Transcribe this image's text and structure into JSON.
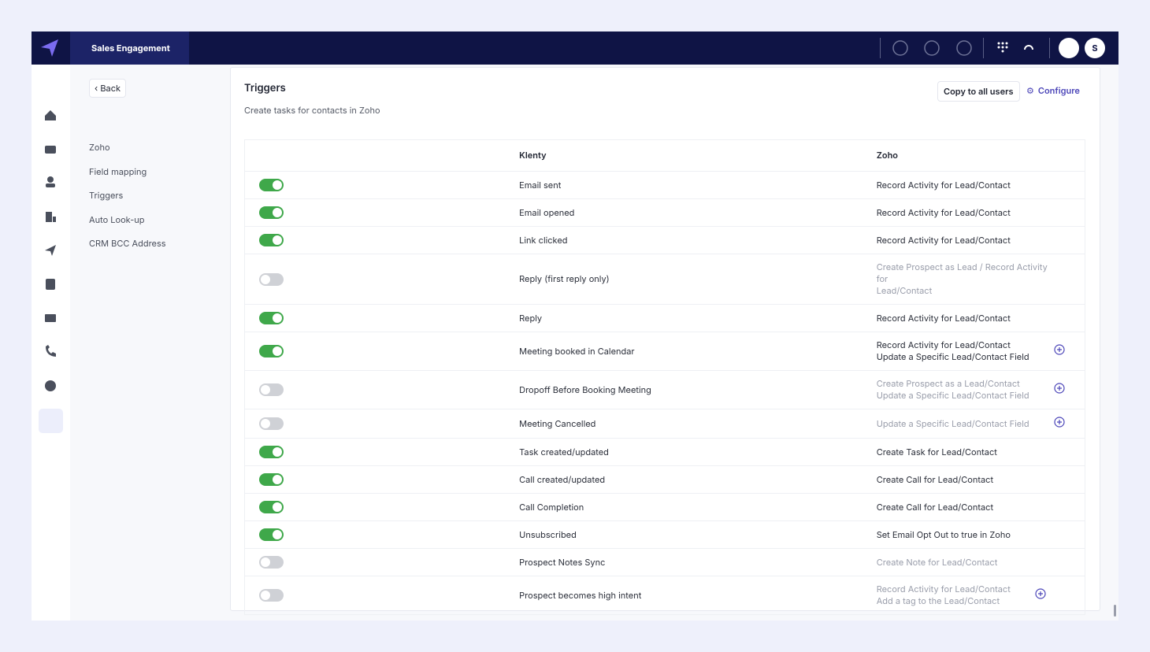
{
  "header": {
    "title": "Sales Engagement",
    "avatar": "S"
  },
  "nav": {
    "back": "Back",
    "items": [
      "Zoho",
      "Field mapping",
      "Triggers",
      "Auto Look-up",
      "CRM BCC Address"
    ]
  },
  "panel": {
    "title": "Triggers",
    "subtitle": "Create tasks for contacts in Zoho",
    "copy_button": "Copy to all users",
    "configure_button": "Configure"
  },
  "table": {
    "headers": [
      "Klenty",
      "Zoho"
    ],
    "rows": [
      {
        "enabled": true,
        "klenty": "Email sent",
        "zoho": [
          "Record Activity for Lead/Contact"
        ],
        "add": false
      },
      {
        "enabled": true,
        "klenty": "Email opened",
        "zoho": [
          "Record Activity for Lead/Contact"
        ],
        "add": false
      },
      {
        "enabled": true,
        "klenty": "Link clicked",
        "zoho": [
          "Record Activity for Lead/Contact"
        ],
        "add": false
      },
      {
        "enabled": false,
        "klenty": "Reply (first reply only)",
        "zoho": [
          "Create Prospect as Lead / Record Activity for",
          "Lead/Contact"
        ],
        "add": false
      },
      {
        "enabled": true,
        "klenty": "Reply",
        "zoho": [
          "Record Activity for Lead/Contact"
        ],
        "add": false
      },
      {
        "enabled": true,
        "klenty": "Meeting booked in Calendar",
        "zoho": [
          "Record Activity for Lead/Contact",
          "Update a Specific Lead/Contact Field"
        ],
        "add": true
      },
      {
        "enabled": false,
        "klenty": "Dropoff Before Booking Meeting",
        "zoho": [
          "Create Prospect as a Lead/Contact",
          "Update a Specific Lead/Contact Field"
        ],
        "add": true
      },
      {
        "enabled": false,
        "klenty": "Meeting Cancelled",
        "zoho": [
          "Update a Specific Lead/Contact Field"
        ],
        "add": true
      },
      {
        "enabled": true,
        "klenty": "Task created/updated",
        "zoho": [
          "Create Task for Lead/Contact"
        ],
        "add": false
      },
      {
        "enabled": true,
        "klenty": "Call created/updated",
        "zoho": [
          "Create Call for Lead/Contact"
        ],
        "add": false
      },
      {
        "enabled": true,
        "klenty": "Call Completion",
        "zoho": [
          "Create Call for Lead/Contact"
        ],
        "add": false
      },
      {
        "enabled": true,
        "klenty": "Unsubscribed",
        "zoho": [
          "Set Email Opt Out to true in Zoho"
        ],
        "add": false
      },
      {
        "enabled": false,
        "klenty": "Prospect Notes Sync",
        "zoho": [
          "Create Note for Lead/Contact"
        ],
        "add": false
      },
      {
        "enabled": false,
        "klenty": "Prospect becomes high intent",
        "zoho": [
          "Record Activity for Lead/Contact",
          "Add a tag to the Lead/Contact"
        ],
        "add": true
      }
    ]
  }
}
